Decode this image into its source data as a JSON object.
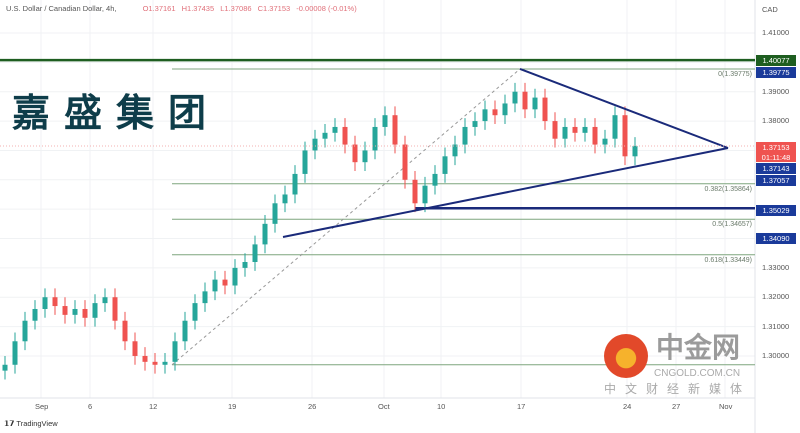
{
  "header": {
    "symbol": "U.S. Dollar / Canadian Dollar, 4h,",
    "open": "O1.37161",
    "high": "H1.37435",
    "low": "L1.37086",
    "close": "C1.37153",
    "change": "-0.00008 (-0.01%)"
  },
  "brand_text": "嘉盛集团",
  "footer": {
    "tradingview": "TradingView"
  },
  "watermark": {
    "name": "中金网",
    "url": "CNGOLD.COM.CN",
    "subtitle": "中文财经新媒体"
  },
  "colors": {
    "up": "#26a69a",
    "down": "#ef5350",
    "trend": "#1a2a7a",
    "green_level": "#1e5e20",
    "fib": "#7fa57f"
  },
  "chart_data": {
    "type": "candlestick",
    "title": "U.S. Dollar / Canadian Dollar, 4h",
    "currency_label": "CAD",
    "ylim": [
      1.295,
      1.415
    ],
    "y_ticks": [
      "1.41000",
      "1.39000",
      "1.38000",
      "1.33000",
      "1.32000",
      "1.31000",
      "1.30000"
    ],
    "x_ticks": [
      "Sep",
      "6",
      "12",
      "19",
      "26",
      "Oct",
      "10",
      "17",
      "24",
      "27",
      "Nov"
    ],
    "closes": [
      1.297,
      1.305,
      1.312,
      1.316,
      1.32,
      1.317,
      1.314,
      1.316,
      1.313,
      1.318,
      1.32,
      1.312,
      1.305,
      1.3,
      1.298,
      1.297,
      1.298,
      1.305,
      1.312,
      1.318,
      1.322,
      1.326,
      1.324,
      1.33,
      1.332,
      1.338,
      1.345,
      1.352,
      1.355,
      1.362,
      1.37,
      1.374,
      1.376,
      1.378,
      1.372,
      1.366,
      1.37,
      1.378,
      1.382,
      1.372,
      1.36,
      1.352,
      1.358,
      1.362,
      1.368,
      1.372,
      1.378,
      1.38,
      1.384,
      1.382,
      1.386,
      1.39,
      1.384,
      1.388,
      1.38,
      1.374,
      1.378,
      1.376,
      1.378,
      1.372,
      1.374,
      1.382,
      1.368,
      1.37153
    ],
    "price_labels": [
      {
        "value": "1.40077",
        "color": "#1e5e20"
      },
      {
        "value": "1.39775",
        "color": "#1a3a9a"
      },
      {
        "value": "1.37153",
        "color": "#ef5350",
        "timer": "01:11:48"
      },
      {
        "value": "1.37143",
        "color": "#1a3a9a"
      },
      {
        "value": "1.37057",
        "color": "#1a3a9a"
      },
      {
        "value": "1.35029",
        "color": "#1a3a9a"
      },
      {
        "value": "1.34090",
        "color": "#1a3a9a"
      }
    ],
    "fib_levels": [
      {
        "ratio": 0,
        "price": 1.39775,
        "label": "0(1.39775)"
      },
      {
        "ratio": 0.382,
        "price": 1.35864,
        "label": "0.382(1.35864)"
      },
      {
        "ratio": 0.5,
        "price": 1.34657,
        "label": "0.5(1.34657)"
      },
      {
        "ratio": 0.618,
        "price": 1.33449,
        "label": "0.618(1.33449)"
      },
      {
        "ratio": 1,
        "price": 1.297,
        "label": ""
      }
    ],
    "horizontal_levels": [
      1.40077,
      1.35029
    ]
  }
}
